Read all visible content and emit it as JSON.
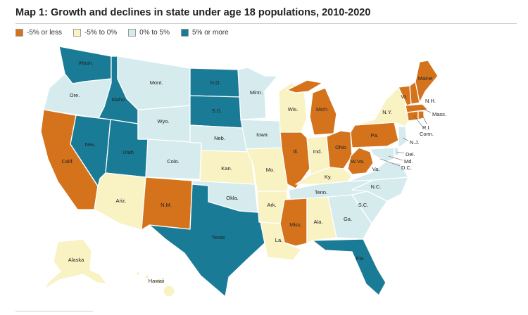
{
  "title": "Map 1: Growth and declines in state under age 18 populations, 2010-2020",
  "legend": [
    {
      "label": "-5% or less",
      "color": "#d5731c"
    },
    {
      "label": "-5% to 0%",
      "color": "#f9f2c3"
    },
    {
      "label": "0% to 5%",
      "color": "#d6ebed"
    },
    {
      "label": "5% or more",
      "color": "#1a7b97"
    }
  ],
  "colors": {
    "c0": "#d5731c",
    "c1": "#f9f2c3",
    "c2": "#d6ebed",
    "c3": "#1a7b97"
  },
  "states": {
    "wa": "Wash.",
    "or": "Ore.",
    "ca": "Calif.",
    "id": "Idaho",
    "nv": "Nev.",
    "ut": "Utah",
    "az": "Ariz.",
    "mt": "Mont.",
    "wy": "Wyo.",
    "co": "Colo.",
    "nm": "N.M.",
    "nd": "N.D.",
    "sd": "S.D.",
    "ne": "Neb.",
    "ks": "Kan.",
    "ok": "Okla.",
    "tx": "Texas",
    "mn": "Minn.",
    "ia": "Iowa",
    "mo": "Mo.",
    "ar": "Ark.",
    "la": "La.",
    "wi": "Wis.",
    "il": "Ill.",
    "mi": "Mich.",
    "in": "Ind.",
    "oh": "Ohio",
    "ky": "Ky.",
    "tn": "Tenn.",
    "ms": "Miss.",
    "al": "Ala.",
    "ga": "Ga.",
    "fl": "Fla.",
    "sc": "S.C.",
    "nc": "N.C.",
    "va": "Va.",
    "wv": "W.Va.",
    "pa": "Pa.",
    "ny": "N.Y.",
    "vt": "Vt.",
    "nh": "N.H.",
    "me": "Maine",
    "ma": "Mass.",
    "ri": "R.I.",
    "ct": "Conn.",
    "nj": "N.J.",
    "de": "Del.",
    "md": "Md.",
    "dc": "D.C.",
    "ak": "Alaska",
    "hi": "Hawaii"
  }
}
